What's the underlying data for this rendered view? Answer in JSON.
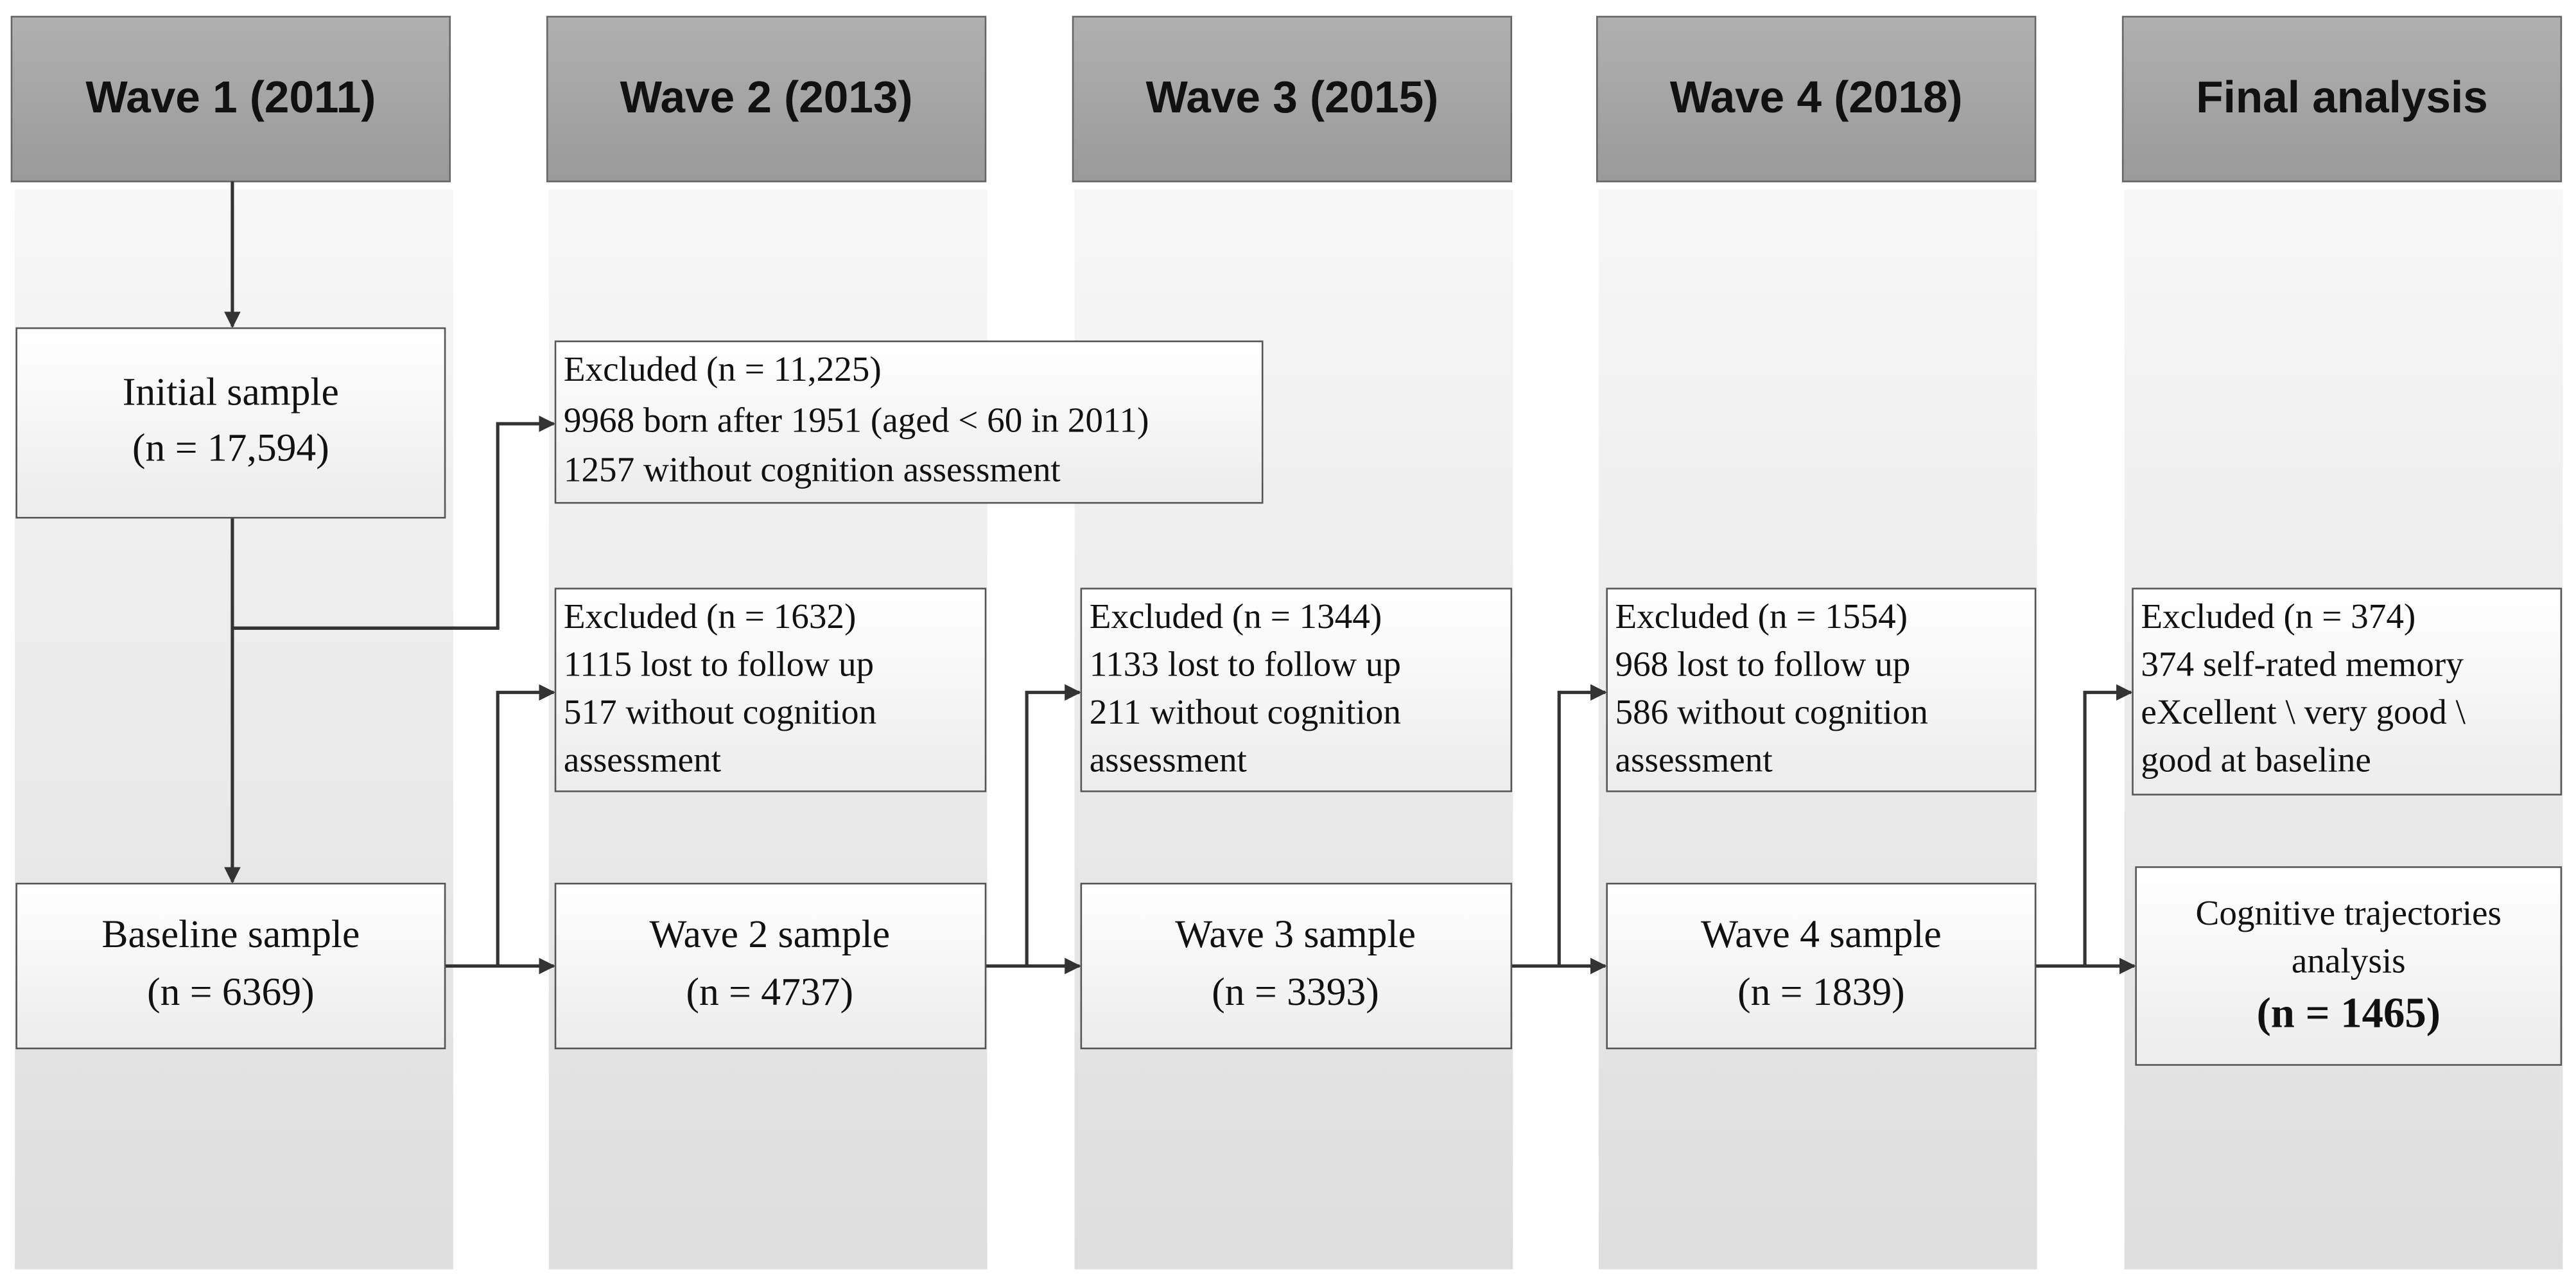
{
  "headers": [
    "Wave 1 (2011)",
    "Wave 2 (2013)",
    "Wave 3 (2015)",
    "Wave 4 (2018)",
    "Final analysis"
  ],
  "sample_boxes": [
    {
      "lines": [
        "Initial sample",
        "(n = 17,594)"
      ]
    },
    {
      "lines": [
        "Baseline sample",
        "(n = 6369)"
      ]
    },
    {
      "lines": [
        "Wave 2 sample",
        "(n = 4737)"
      ]
    },
    {
      "lines": [
        "Wave 3 sample",
        "(n = 3393)"
      ]
    },
    {
      "lines": [
        "Wave 4 sample",
        "(n = 1839)"
      ]
    },
    {
      "lines": [
        "Cognitive trajectories",
        "analysis",
        "(n = 1465)"
      ]
    }
  ],
  "excluded_boxes": [
    {
      "lines": [
        "Excluded (n = 11,225)",
        "9968 born after 1951 (aged < 60 in 2011)",
        "1257 without cognition assessment"
      ]
    },
    {
      "lines": [
        "Excluded (n = 1632)",
        "1115 lost to follow up",
        "517 without cognition",
        "assessment"
      ]
    },
    {
      "lines": [
        "Excluded (n = 1344)",
        "1133 lost to follow up",
        "211 without cognition",
        "assessment"
      ]
    },
    {
      "lines": [
        "Excluded (n = 1554)",
        "968 lost to follow up",
        "586 without cognition",
        "assessment"
      ]
    },
    {
      "lines": [
        "Excluded (n = 374)",
        "374 self-rated memory",
        "eXcellent \\ very good \\",
        "good at baseline"
      ]
    }
  ]
}
